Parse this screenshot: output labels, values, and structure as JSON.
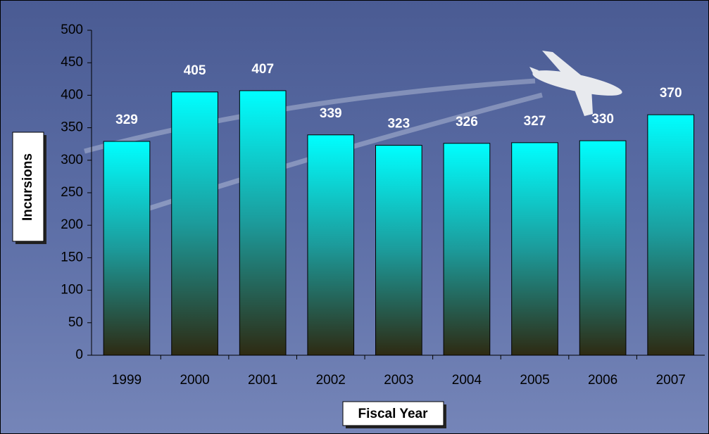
{
  "chart_data": {
    "type": "bar",
    "x_label": "Fiscal Year",
    "y_label": "Incursions",
    "categories": [
      "1999",
      "2000",
      "2001",
      "2002",
      "2003",
      "2004",
      "2005",
      "2006",
      "2007"
    ],
    "values": [
      329,
      405,
      407,
      339,
      323,
      326,
      327,
      330,
      370
    ],
    "color": "#00ffff",
    "ylim": [
      0,
      500
    ],
    "yticks": [
      0,
      50,
      100,
      150,
      200,
      250,
      300,
      350,
      400,
      450,
      500
    ],
    "grid": false
  }
}
